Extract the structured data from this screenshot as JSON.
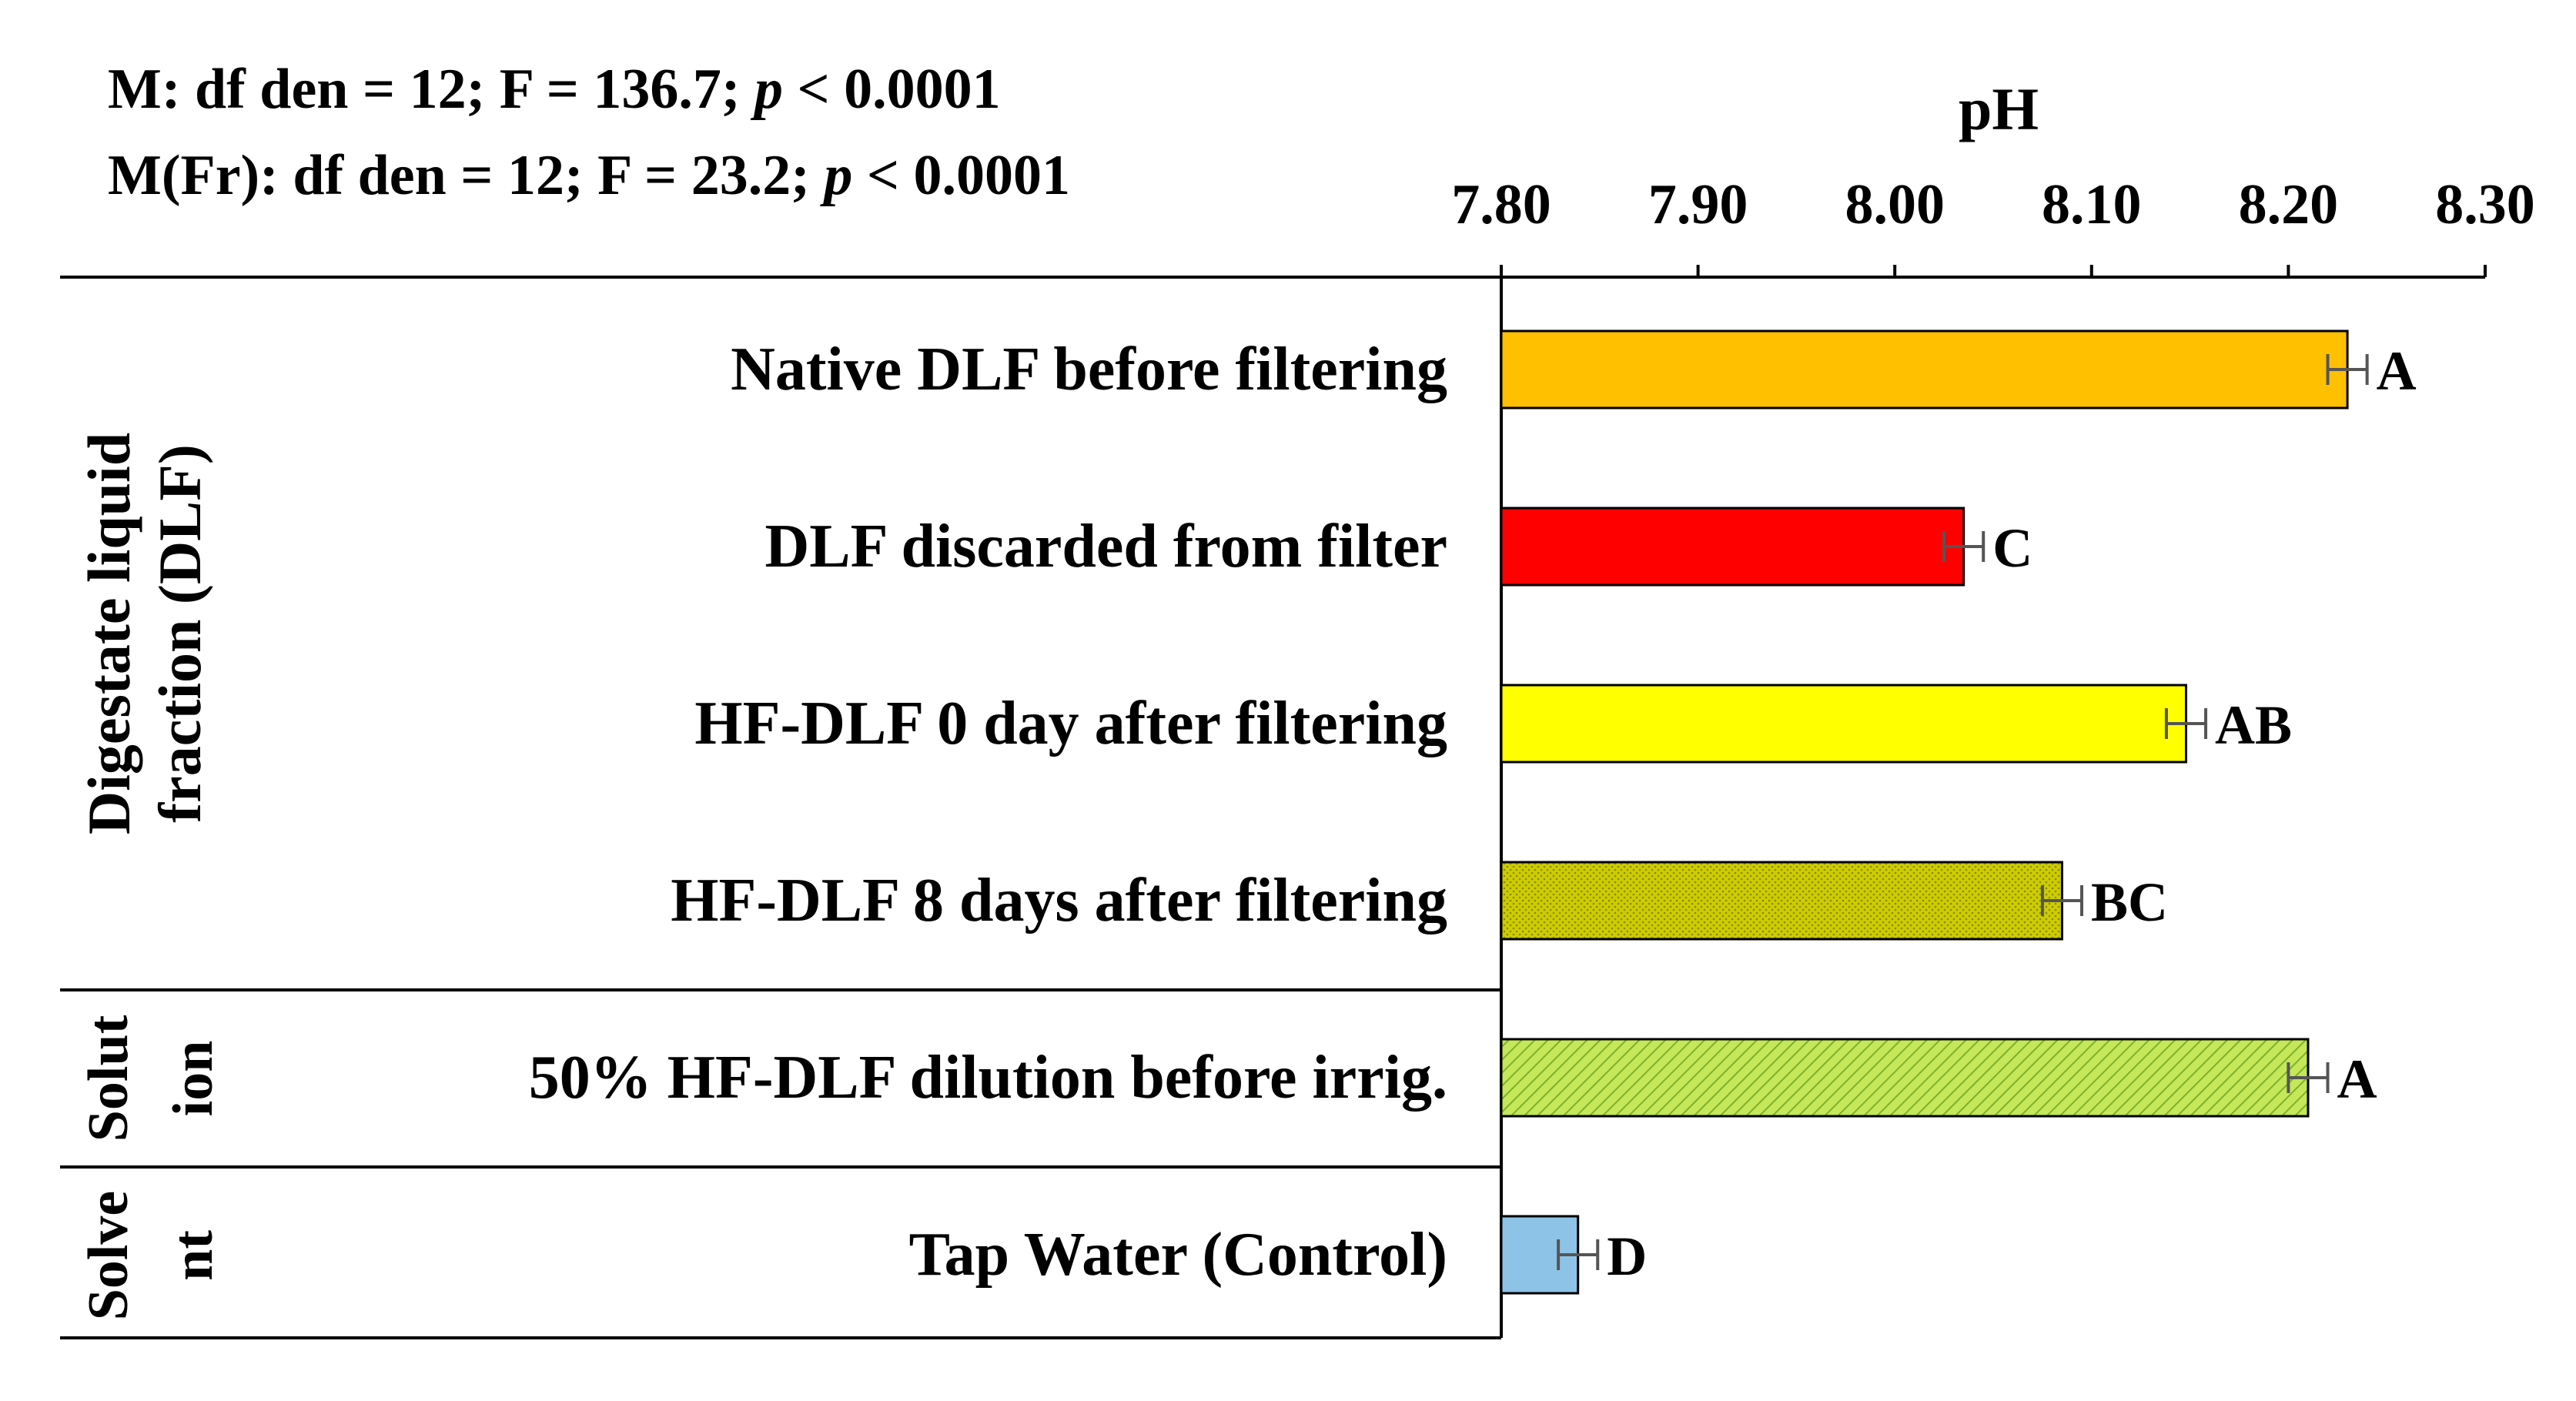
{
  "chart_data": {
    "type": "bar",
    "orientation": "horizontal",
    "stats_lines": [
      {
        "prefix": "M:  df  den  = 12; F = 136.7; ",
        "p": "p",
        "suffix": " < 0.0001"
      },
      {
        "prefix": "M(Fr):  df  den  = 12; F = 23.2; ",
        "p": "p",
        "suffix": " < 0.0001"
      }
    ],
    "xlabel": "pH",
    "xlim": [
      7.8,
      8.3
    ],
    "ticks": [
      7.8,
      7.9,
      8.0,
      8.1,
      8.2,
      8.3
    ],
    "tick_labels": [
      "7.80",
      "7.90",
      "8.00",
      "8.10",
      "8.20",
      "8.30"
    ],
    "grid": false,
    "groups": [
      {
        "label_lines": [
          "Digestate liquid",
          "fraction (DLF)"
        ],
        "count": 4
      },
      {
        "label_lines": [
          "Solut",
          "ion"
        ],
        "count": 1
      },
      {
        "label_lines": [
          "Solve",
          "nt"
        ],
        "count": 1
      }
    ],
    "bars": [
      {
        "category": "Native DLF before filtering",
        "value": 8.23,
        "error": 0.01,
        "letter": "A",
        "color": "#FFC000",
        "pattern": "none"
      },
      {
        "category": "DLF discarded from filter",
        "value": 8.035,
        "error": 0.01,
        "letter": "C",
        "color": "#FF0000",
        "pattern": "none"
      },
      {
        "category": "HF-DLF 0 day after filtering",
        "value": 8.148,
        "error": 0.01,
        "letter": "AB",
        "color": "#FFFF00",
        "pattern": "none"
      },
      {
        "category": "HF-DLF 8 days after filtering",
        "value": 8.085,
        "error": 0.01,
        "letter": "BC",
        "color": "#CCCC00",
        "pattern": "dots"
      },
      {
        "category": "50% HF-DLF dilution before irrig.",
        "value": 8.21,
        "error": 0.01,
        "letter": "A",
        "color": "#C4E85A",
        "pattern": "diagonal"
      },
      {
        "category": "Tap Water (Control)",
        "value": 7.839,
        "error": 0.01,
        "letter": "D",
        "color": "#8EC3E8",
        "pattern": "none"
      }
    ]
  }
}
